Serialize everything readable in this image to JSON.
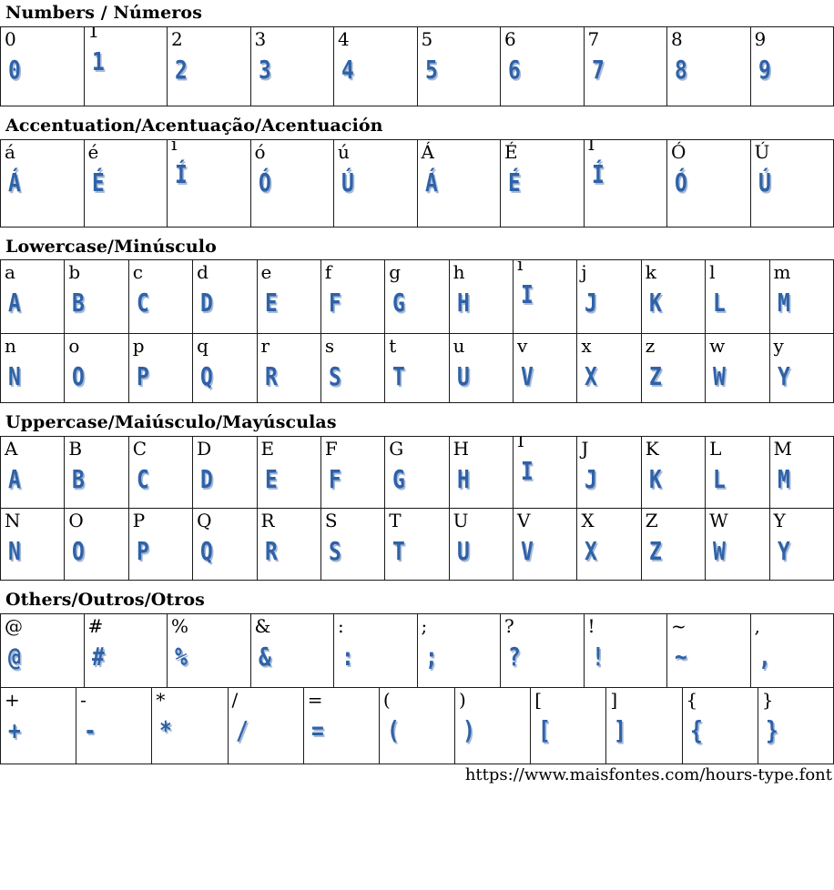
{
  "page_title": "Hours Type font specimen",
  "colors": {
    "glyph_blue": "#2e62a8",
    "glyph_shadow": "#a9bad4",
    "text_black": "#000000"
  },
  "footer_url": "https://www.maisfontes.com/hours-type.font",
  "sections": [
    {
      "id": "numbers",
      "title": "Numbers / Números",
      "rows": [
        [
          {
            "c": "0",
            "g": "0"
          },
          {
            "c": "1",
            "g": "1"
          },
          {
            "c": "2",
            "g": "2"
          },
          {
            "c": "3",
            "g": "3"
          },
          {
            "c": "4",
            "g": "4"
          },
          {
            "c": "5",
            "g": "5"
          },
          {
            "c": "6",
            "g": "6"
          },
          {
            "c": "7",
            "g": "7"
          },
          {
            "c": "8",
            "g": "8"
          },
          {
            "c": "9",
            "g": "9"
          }
        ]
      ]
    },
    {
      "id": "accentuation",
      "title": "Accentuation/Acentuação/Acentuación",
      "rows": [
        [
          {
            "c": "á",
            "g": "Á"
          },
          {
            "c": "é",
            "g": "É"
          },
          {
            "c": "í",
            "g": "Í"
          },
          {
            "c": "ó",
            "g": "Ó"
          },
          {
            "c": "ú",
            "g": "Ú"
          },
          {
            "c": "Á",
            "g": "Á"
          },
          {
            "c": "É",
            "g": "É"
          },
          {
            "c": "Í",
            "g": "Í"
          },
          {
            "c": "Ó",
            "g": "Ó"
          },
          {
            "c": "Ú",
            "g": "Ú"
          }
        ]
      ]
    },
    {
      "id": "lowercase",
      "title": "Lowercase/Minúsculo",
      "rows": [
        [
          {
            "c": "a",
            "g": "A"
          },
          {
            "c": "b",
            "g": "B"
          },
          {
            "c": "c",
            "g": "C"
          },
          {
            "c": "d",
            "g": "D"
          },
          {
            "c": "e",
            "g": "E"
          },
          {
            "c": "f",
            "g": "F"
          },
          {
            "c": "g",
            "g": "G"
          },
          {
            "c": "h",
            "g": "H"
          },
          {
            "c": "i",
            "g": "I"
          },
          {
            "c": "j",
            "g": "J"
          },
          {
            "c": "k",
            "g": "K"
          },
          {
            "c": "l",
            "g": "L"
          },
          {
            "c": "m",
            "g": "M"
          }
        ],
        [
          {
            "c": "n",
            "g": "N"
          },
          {
            "c": "o",
            "g": "O"
          },
          {
            "c": "p",
            "g": "P"
          },
          {
            "c": "q",
            "g": "Q"
          },
          {
            "c": "r",
            "g": "R"
          },
          {
            "c": "s",
            "g": "S"
          },
          {
            "c": "t",
            "g": "T"
          },
          {
            "c": "u",
            "g": "U"
          },
          {
            "c": "v",
            "g": "V"
          },
          {
            "c": "x",
            "g": "X"
          },
          {
            "c": "z",
            "g": "Z"
          },
          {
            "c": "w",
            "g": "W"
          },
          {
            "c": "y",
            "g": "Y"
          }
        ]
      ]
    },
    {
      "id": "uppercase",
      "title": "Uppercase/Maiúsculo/Mayúsculas",
      "rows": [
        [
          {
            "c": "A",
            "g": "A"
          },
          {
            "c": "B",
            "g": "B"
          },
          {
            "c": "C",
            "g": "C"
          },
          {
            "c": "D",
            "g": "D"
          },
          {
            "c": "E",
            "g": "E"
          },
          {
            "c": "F",
            "g": "F"
          },
          {
            "c": "G",
            "g": "G"
          },
          {
            "c": "H",
            "g": "H"
          },
          {
            "c": "I",
            "g": "I"
          },
          {
            "c": "J",
            "g": "J"
          },
          {
            "c": "K",
            "g": "K"
          },
          {
            "c": "L",
            "g": "L"
          },
          {
            "c": "M",
            "g": "M"
          }
        ],
        [
          {
            "c": "N",
            "g": "N"
          },
          {
            "c": "O",
            "g": "O"
          },
          {
            "c": "P",
            "g": "P"
          },
          {
            "c": "Q",
            "g": "Q"
          },
          {
            "c": "R",
            "g": "R"
          },
          {
            "c": "S",
            "g": "S"
          },
          {
            "c": "T",
            "g": "T"
          },
          {
            "c": "U",
            "g": "U"
          },
          {
            "c": "V",
            "g": "V"
          },
          {
            "c": "X",
            "g": "X"
          },
          {
            "c": "Z",
            "g": "Z"
          },
          {
            "c": "W",
            "g": "W"
          },
          {
            "c": "Y",
            "g": "Y"
          }
        ]
      ]
    },
    {
      "id": "others",
      "title": "Others/Outros/Otros",
      "rows": [
        [
          {
            "c": "@",
            "g": "@"
          },
          {
            "c": "#",
            "g": "#"
          },
          {
            "c": "%",
            "g": "%"
          },
          {
            "c": "&",
            "g": "&"
          },
          {
            "c": ":",
            "g": ":"
          },
          {
            "c": ";",
            "g": ";"
          },
          {
            "c": "?",
            "g": "?"
          },
          {
            "c": "!",
            "g": "!"
          },
          {
            "c": "~",
            "g": "~"
          },
          {
            "c": ",",
            "g": ","
          }
        ],
        [
          {
            "c": "+",
            "g": "+"
          },
          {
            "c": "-",
            "g": "-"
          },
          {
            "c": "*",
            "g": "*"
          },
          {
            "c": "/",
            "g": "/"
          },
          {
            "c": "=",
            "g": "="
          },
          {
            "c": "(",
            "g": "("
          },
          {
            "c": ")",
            "g": ")"
          },
          {
            "c": "[",
            "g": "["
          },
          {
            "c": "]",
            "g": "]"
          },
          {
            "c": "{",
            "g": "{"
          },
          {
            "c": "}",
            "g": "}"
          }
        ]
      ]
    }
  ]
}
